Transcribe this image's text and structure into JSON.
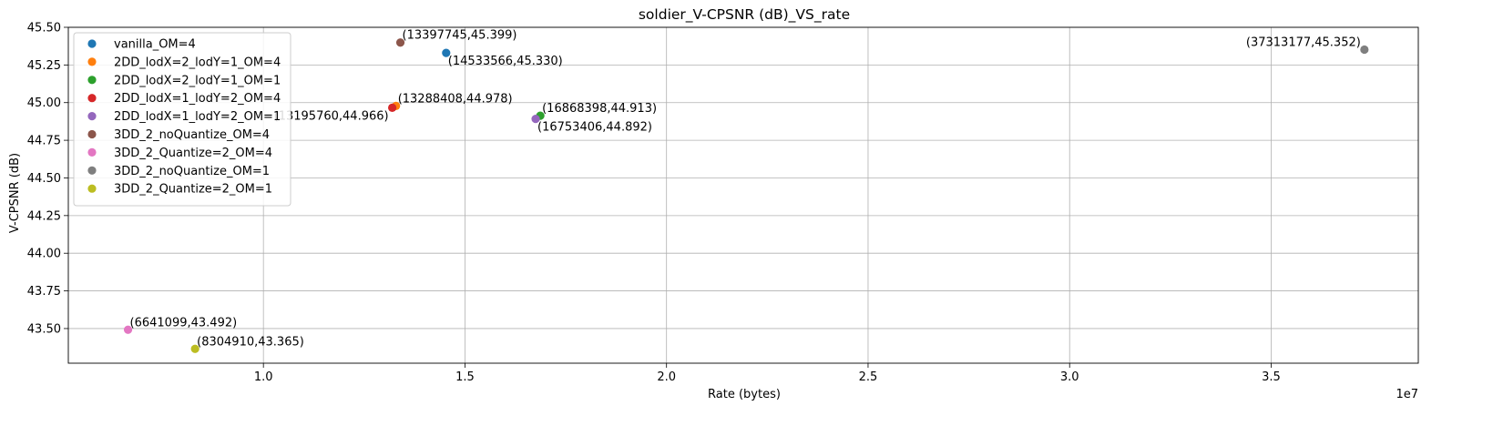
{
  "chart_data": {
    "type": "scatter",
    "title": "soldier_V-CPSNR (dB)_VS_rate",
    "xlabel": "Rate (bytes)",
    "ylabel": "V-CPSNR (dB)",
    "x_offset_label": "1e7",
    "x_scale": 10000000,
    "xlim": [
      5160000,
      38650000
    ],
    "ylim": [
      43.27,
      45.5
    ],
    "x_ticks": [
      10000000,
      15000000,
      20000000,
      25000000,
      30000000,
      35000000
    ],
    "x_tick_labels": [
      "1.0",
      "1.5",
      "2.0",
      "2.5",
      "3.0",
      "3.5"
    ],
    "y_ticks": [
      43.5,
      43.75,
      44.0,
      44.25,
      44.5,
      44.75,
      45.0,
      45.25,
      45.5
    ],
    "y_tick_labels": [
      "43.50",
      "43.75",
      "44.00",
      "44.25",
      "44.50",
      "44.75",
      "45.00",
      "45.25",
      "45.50"
    ],
    "grid": true,
    "legend_position": "upper-left",
    "series": [
      {
        "name": "vanilla_OM=4",
        "color": "#1f77b4",
        "x": 14533566,
        "y": 45.33,
        "label": "(14533566,45.330)",
        "label_pos": "below-right"
      },
      {
        "name": "2DD_lodX=2_lodY=1_OM=4",
        "color": "#ff7f0e",
        "x": 13288408,
        "y": 44.978,
        "label": "(13288408,44.978)",
        "label_pos": "above-right"
      },
      {
        "name": "2DD_lodX=2_lodY=1_OM=1",
        "color": "#2ca02c",
        "x": 16868398,
        "y": 44.913,
        "label": "(16868398,44.913)",
        "label_pos": "above-right"
      },
      {
        "name": "2DD_lodX=1_lodY=2_OM=4",
        "color": "#d62728",
        "x": 13195760,
        "y": 44.966,
        "label": "(13195760,44.966)",
        "label_pos": "below-left"
      },
      {
        "name": "2DD_lodX=1_lodY=2_OM=1",
        "color": "#9467bd",
        "x": 16753406,
        "y": 44.892,
        "label": "(16753406,44.892)",
        "label_pos": "below-right"
      },
      {
        "name": "3DD_2_noQuantize_OM=4",
        "color": "#8c564b",
        "x": 13397745,
        "y": 45.399,
        "label": "(13397745,45.399)",
        "label_pos": "above-right"
      },
      {
        "name": "3DD_2_Quantize=2_OM=4",
        "color": "#e377c2",
        "x": 6641099,
        "y": 43.492,
        "label": "(6641099,43.492)",
        "label_pos": "above-right"
      },
      {
        "name": "3DD_2_noQuantize_OM=1",
        "color": "#7f7f7f",
        "x": 37313177,
        "y": 45.352,
        "label": "(37313177,45.352)",
        "label_pos": "above-left"
      },
      {
        "name": "3DD_2_Quantize=2_OM=1",
        "color": "#bcbd22",
        "x": 8304910,
        "y": 43.365,
        "label": "(8304910,43.365)",
        "label_pos": "above-right"
      }
    ]
  }
}
